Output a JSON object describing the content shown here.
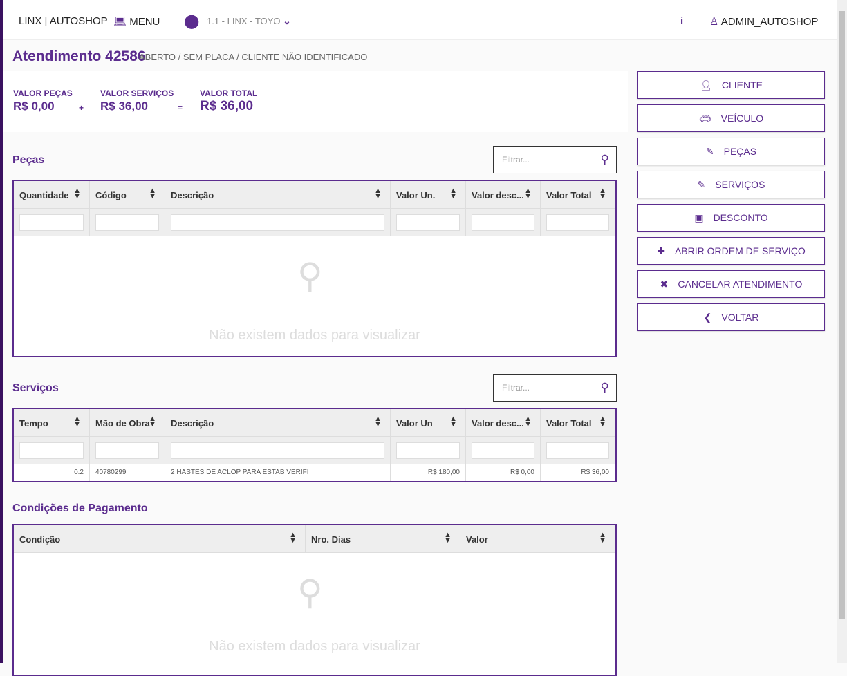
{
  "header": {
    "brand": "LINX | AUTOSHOP",
    "menu": "MENU",
    "location": "1.1 - LINX - TOYO",
    "info": "i",
    "user": "ADMIN_AUTOSHOP"
  },
  "page": {
    "title": "Atendimento 42586",
    "subtitle": "ABERTO / SEM PLACA / CLIENTE NÃO IDENTIFICADO"
  },
  "summary": {
    "pecas_label": "VALOR PEÇAS",
    "pecas": "R$ 0,00",
    "plus": "+",
    "servicos_label": "VALOR SERVIÇOS",
    "servicos": "R$ 36,00",
    "eq": "=",
    "total_label": "VALOR TOTAL",
    "total": "R$ 36,00"
  },
  "pecas": {
    "title": "Peças",
    "filter_placeholder": "Filtrar...",
    "columns": [
      "Quantidade",
      "Código",
      "Descrição",
      "Valor Un.",
      "Valor desc...",
      "Valor Total"
    ],
    "empty": "Não existem dados para visualizar"
  },
  "servicos": {
    "title": "Serviços",
    "filter_placeholder": "Filtrar...",
    "columns": [
      "Tempo",
      "Mão de Obra",
      "Descrição",
      "Valor Un",
      "Valor desc...",
      "Valor Total"
    ],
    "rows": [
      [
        "0.2",
        "40780299",
        "2 HASTES DE ACLOP PARA ESTAB VERIFI",
        "R$ 180,00",
        "R$ 0,00",
        "R$ 36,00"
      ]
    ]
  },
  "pagamento": {
    "title": "Condições de Pagamento",
    "columns": [
      "Condição",
      "Nro. Dias",
      "Valor"
    ],
    "empty": "Não existem dados para visualizar"
  },
  "actions": [
    {
      "label": "CLIENTE",
      "icon": "user-icon"
    },
    {
      "label": "VEÍCULO",
      "icon": "car-icon"
    },
    {
      "label": "PEÇAS",
      "icon": "edit-icon"
    },
    {
      "label": "SERVIÇOS",
      "icon": "edit-icon"
    },
    {
      "label": "DESCONTO",
      "icon": "money-icon"
    },
    {
      "label": "ABRIR ORDEM DE SERVIÇO",
      "icon": "plus-icon"
    },
    {
      "label": "CANCELAR ATENDIMENTO",
      "icon": "close-icon"
    },
    {
      "label": "VOLTAR",
      "icon": "chevron-left-icon"
    }
  ],
  "colors": {
    "accent": "#5b2c8e",
    "sidebar": "#3a1160"
  }
}
